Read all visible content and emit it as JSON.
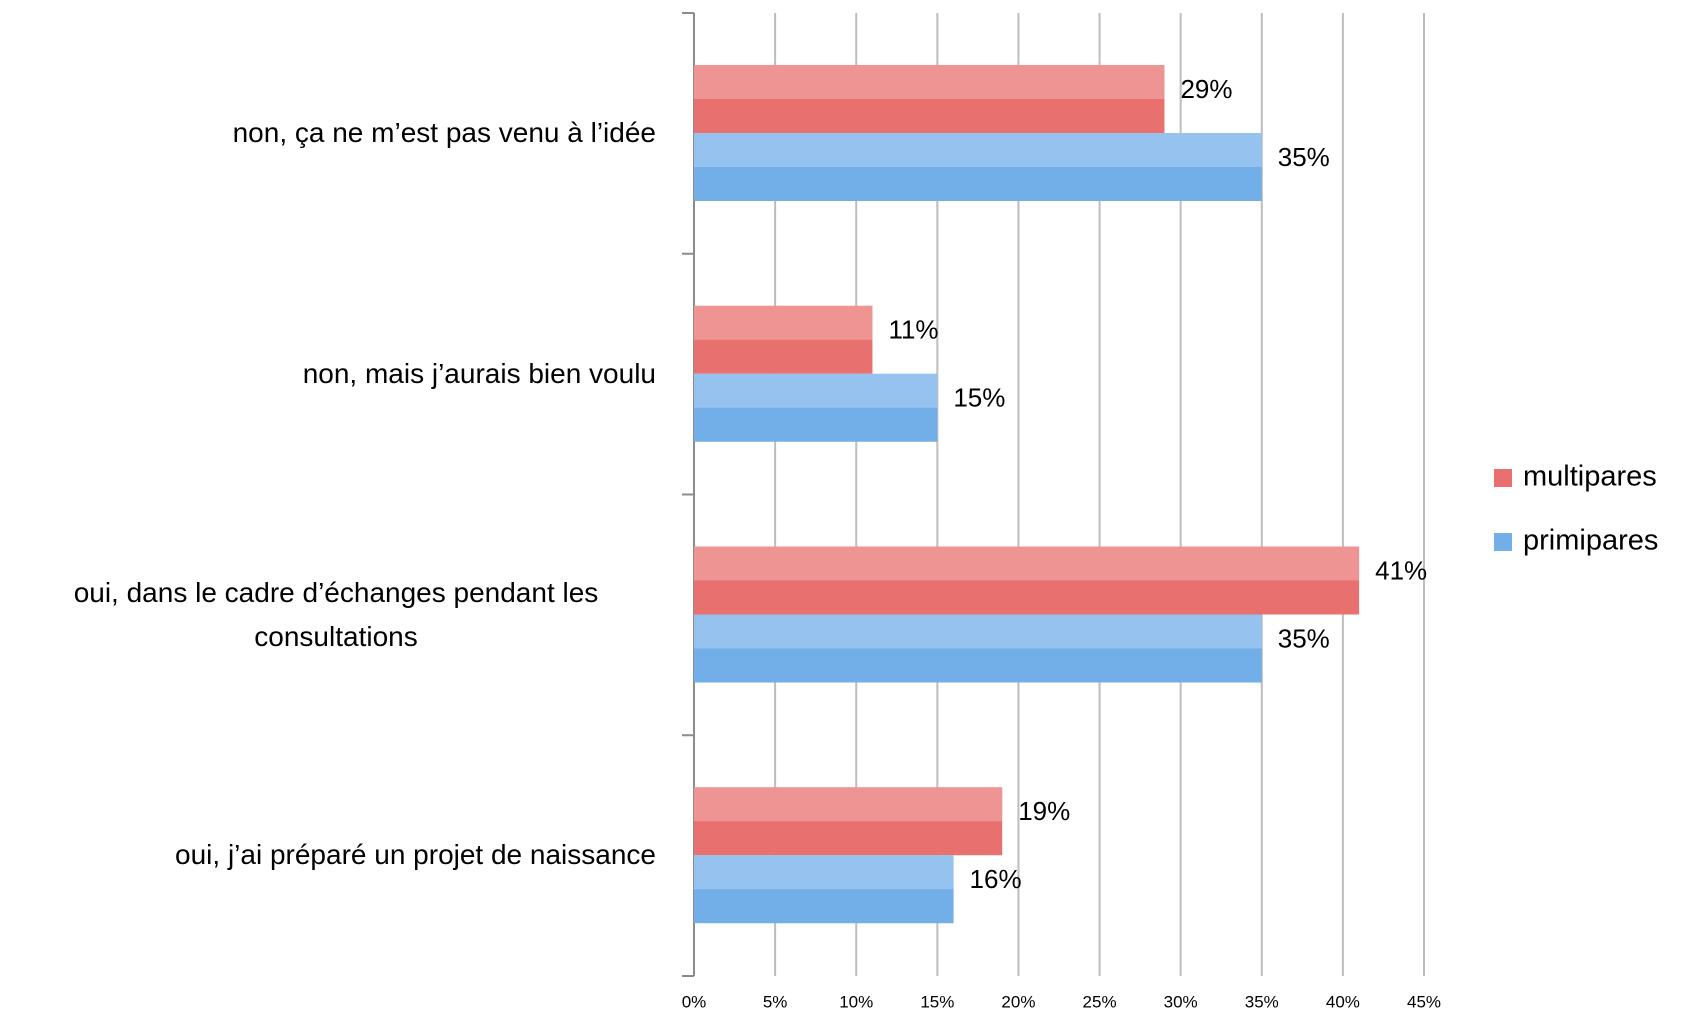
{
  "chart_data": {
    "type": "hbar",
    "categories": [
      "non, ça ne m’est pas venu à l’idée",
      "non, mais j’aurais bien voulu",
      "oui, dans le cadre d’échanges pendant les consultations",
      "oui, j’ai préparé un projet de naissance"
    ],
    "series": [
      {
        "name": "multipares",
        "color": "#e8706f",
        "values": [
          29,
          11,
          41,
          19
        ],
        "value_labels": [
          "29%",
          "11%",
          "41%",
          "19%"
        ]
      },
      {
        "name": "primipares",
        "color": "#72aee8",
        "values": [
          35,
          15,
          35,
          16
        ],
        "value_labels": [
          "35%",
          "15%",
          "35%",
          "16%"
        ]
      }
    ],
    "xlim": [
      0,
      45
    ],
    "xticks": [
      {
        "value": 0,
        "label": "0%"
      },
      {
        "value": 5,
        "label": "5%"
      },
      {
        "value": 10,
        "label": "10%"
      },
      {
        "value": 15,
        "label": "15%"
      },
      {
        "value": 20,
        "label": "20%"
      },
      {
        "value": 25,
        "label": "25%"
      },
      {
        "value": 30,
        "label": "30%"
      },
      {
        "value": 35,
        "label": "35%"
      },
      {
        "value": 40,
        "label": "40%"
      },
      {
        "value": 45,
        "label": "45%"
      }
    ],
    "grid": true,
    "legend": "right"
  }
}
